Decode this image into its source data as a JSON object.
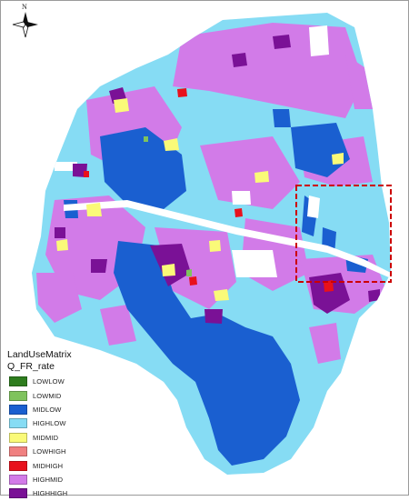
{
  "north_label": "N",
  "legend": {
    "title": "LandUseMatrix",
    "field": "Q_FR_rate",
    "classes": [
      {
        "label": "LOWLOW",
        "color": "#2e7d1e"
      },
      {
        "label": "LOWMID",
        "color": "#7fc35d"
      },
      {
        "label": "MIDLOW",
        "color": "#1a5fd0"
      },
      {
        "label": "HIGHLOW",
        "color": "#86dcf4"
      },
      {
        "label": "MIDMID",
        "color": "#fafa78"
      },
      {
        "label": "LOWHIGH",
        "color": "#f08080"
      },
      {
        "label": "MIDHIGH",
        "color": "#e8111c"
      },
      {
        "label": "HIGHMID",
        "color": "#d27be8"
      },
      {
        "label": "HIGHHIGH",
        "color": "#7a1196"
      }
    ]
  },
  "highlight_box_color": "#cc0000"
}
